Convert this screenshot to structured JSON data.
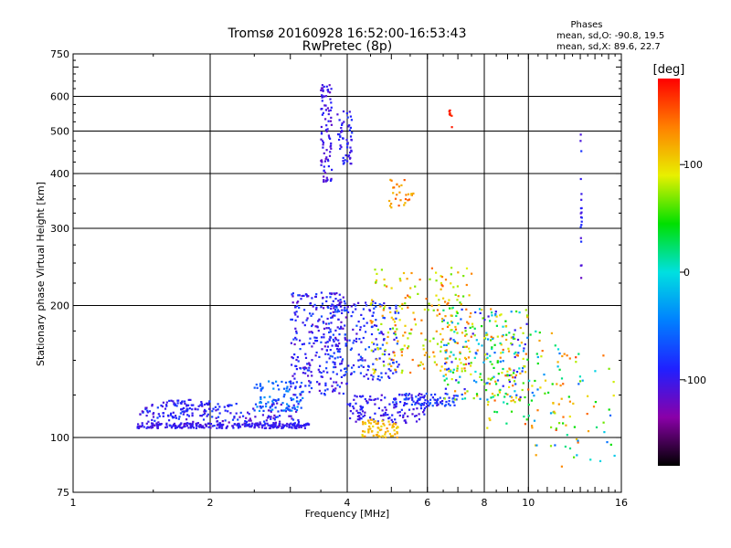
{
  "chart_data": {
    "type": "scatter",
    "title": "Tromsø 20160928 16:52:00-16:53:43",
    "subtitle": "RwPretec (8p)",
    "xlabel": "Frequency [MHz]",
    "ylabel": "Stationary phase Virtual Height [km]",
    "x_scale": "log",
    "y_scale": "log",
    "xlim": [
      1,
      16
    ],
    "ylim": [
      75,
      750
    ],
    "x_ticks": [
      1,
      2,
      4,
      6,
      8,
      10,
      16
    ],
    "y_ticks": [
      75,
      100,
      200,
      300,
      400,
      500,
      600,
      750
    ],
    "x_tick_labels": [
      "1",
      "2",
      "4",
      "6",
      "8",
      "10",
      "16"
    ],
    "y_tick_labels": [
      "75",
      "100",
      "200",
      "300",
      "400",
      "500",
      "600",
      "750"
    ],
    "grid": true,
    "phases_header": "Phases",
    "phase_stats": [
      "mean, sd,O: -90.8, 19.5",
      "mean, sd,X:  89.6, 22.7"
    ],
    "colorbar": {
      "label": "[deg]",
      "range": [
        -180,
        180
      ],
      "ticks": [
        100,
        0,
        -100
      ],
      "tick_labels": [
        "100",
        "0",
        "-100"
      ],
      "colormap": [
        "#000000",
        "#8a00a8",
        "#2020ff",
        "#0080ff",
        "#00e0e0",
        "#00e000",
        "#e8f000",
        "#ff8000",
        "#ff0000"
      ]
    },
    "point_clusters": [
      {
        "x": [
          1.38,
          3.3
        ],
        "y": [
          105,
          108
        ],
        "phase": [
          -110,
          -90
        ],
        "n": 260
      },
      {
        "x": [
          1.4,
          3.2
        ],
        "y": [
          106,
          120
        ],
        "phase": [
          -120,
          -70
        ],
        "n": 170
      },
      {
        "x": [
          1.55,
          2.1
        ],
        "y": [
          112,
          122
        ],
        "phase": [
          -110,
          -80
        ],
        "n": 60
      },
      {
        "x": [
          2.5,
          3.2
        ],
        "y": [
          115,
          135
        ],
        "phase": [
          -80,
          -30
        ],
        "n": 90
      },
      {
        "x": [
          3.0,
          4.0
        ],
        "y": [
          125,
          215
        ],
        "phase": [
          -120,
          -70
        ],
        "n": 280
      },
      {
        "x": [
          3.6,
          5.2
        ],
        "y": [
          135,
          205
        ],
        "phase": [
          -110,
          -60
        ],
        "n": 180
      },
      {
        "x": [
          4.0,
          6.0
        ],
        "y": [
          108,
          125
        ],
        "phase": [
          -115,
          -85
        ],
        "n": 120
      },
      {
        "x": [
          5.0,
          7.0
        ],
        "y": [
          118,
          126
        ],
        "phase": [
          -110,
          -60
        ],
        "n": 90
      },
      {
        "x": [
          4.5,
          7.5
        ],
        "y": [
          140,
          245
        ],
        "phase": [
          60,
          150
        ],
        "n": 200
      },
      {
        "x": [
          4.3,
          5.2
        ],
        "y": [
          100,
          110
        ],
        "phase": [
          95,
          130
        ],
        "n": 70
      },
      {
        "x": [
          6.5,
          10.0
        ],
        "y": [
          120,
          200
        ],
        "phase": [
          -110,
          150
        ],
        "n": 240
      },
      {
        "x": [
          8.0,
          12.0
        ],
        "y": [
          105,
          175
        ],
        "phase": [
          0,
          150
        ],
        "n": 90
      },
      {
        "x": [
          10.0,
          15.5
        ],
        "y": [
          85,
          160
        ],
        "phase": [
          -60,
          160
        ],
        "n": 70
      },
      {
        "x": [
          3.5,
          3.7
        ],
        "y": [
          380,
          640
        ],
        "phase": [
          -120,
          -90
        ],
        "n": 90
      },
      {
        "x": [
          3.8,
          4.1
        ],
        "y": [
          420,
          560
        ],
        "phase": [
          -110,
          -80
        ],
        "n": 55
      },
      {
        "x": [
          4.9,
          5.6
        ],
        "y": [
          330,
          390
        ],
        "phase": [
          110,
          150
        ],
        "n": 30
      },
      {
        "x": [
          13.0,
          13.1
        ],
        "y": [
          230,
          520
        ],
        "phase": [
          -120,
          -80
        ],
        "n": 20
      },
      {
        "x": [
          6.7,
          6.8
        ],
        "y": [
          510,
          560
        ],
        "phase": [
          160,
          175
        ],
        "n": 8
      }
    ]
  }
}
